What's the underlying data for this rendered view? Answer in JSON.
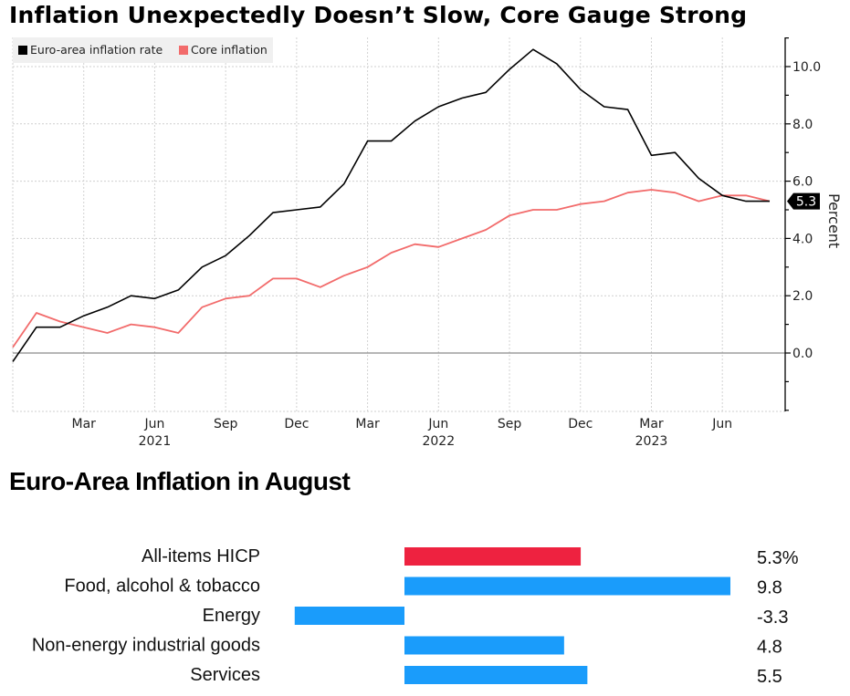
{
  "chart_data": [
    {
      "type": "line",
      "title": "Inflation Unexpectedly Doesn’t Slow, Core Gauge Strong",
      "xlabel": "",
      "ylabel": "Percent",
      "ylim": [
        -2,
        11
      ],
      "y_ticks": [
        0,
        2,
        4,
        6,
        8,
        10
      ],
      "y_tick_labels": [
        "0.0",
        "2.0",
        "4.0",
        "6.0",
        "8.0",
        "10.0"
      ],
      "grid": true,
      "legend_placement": "top-left",
      "x": [
        "2020-12",
        "2021-01",
        "2021-02",
        "2021-03",
        "2021-04",
        "2021-05",
        "2021-06",
        "2021-07",
        "2021-08",
        "2021-09",
        "2021-10",
        "2021-11",
        "2021-12",
        "2022-01",
        "2022-02",
        "2022-03",
        "2022-04",
        "2022-05",
        "2022-06",
        "2022-07",
        "2022-08",
        "2022-09",
        "2022-10",
        "2022-11",
        "2022-12",
        "2023-01",
        "2023-02",
        "2023-03",
        "2023-04",
        "2023-05",
        "2023-06",
        "2023-07",
        "2023-08"
      ],
      "x_ticks": [
        {
          "index": 3,
          "label": "Mar",
          "year": ""
        },
        {
          "index": 6,
          "label": "Jun",
          "year": "2021"
        },
        {
          "index": 9,
          "label": "Sep",
          "year": ""
        },
        {
          "index": 12,
          "label": "Dec",
          "year": ""
        },
        {
          "index": 15,
          "label": "Mar",
          "year": ""
        },
        {
          "index": 18,
          "label": "Jun",
          "year": "2022"
        },
        {
          "index": 21,
          "label": "Sep",
          "year": ""
        },
        {
          "index": 24,
          "label": "Dec",
          "year": ""
        },
        {
          "index": 27,
          "label": "Mar",
          "year": "2023"
        },
        {
          "index": 30,
          "label": "Jun",
          "year": ""
        }
      ],
      "series": [
        {
          "name": "Euro-area inflation rate",
          "color": "#000000",
          "values": [
            -0.3,
            0.9,
            0.9,
            1.3,
            1.6,
            2.0,
            1.9,
            2.2,
            3.0,
            3.4,
            4.1,
            4.9,
            5.0,
            5.1,
            5.9,
            7.4,
            7.4,
            8.1,
            8.6,
            8.9,
            9.1,
            9.9,
            10.6,
            10.1,
            9.2,
            8.6,
            8.5,
            6.9,
            7.0,
            6.1,
            5.5,
            5.3,
            5.3
          ]
        },
        {
          "name": "Core inflation",
          "color": "#f26b6b",
          "values": [
            0.2,
            1.4,
            1.1,
            0.9,
            0.7,
            1.0,
            0.9,
            0.7,
            1.6,
            1.9,
            2.0,
            2.6,
            2.6,
            2.3,
            2.7,
            3.0,
            3.5,
            3.8,
            3.7,
            4.0,
            4.3,
            4.8,
            5.0,
            5.0,
            5.2,
            5.3,
            5.6,
            5.7,
            5.6,
            5.3,
            5.5,
            5.5,
            5.3
          ]
        }
      ],
      "last_value_label": "5.3"
    },
    {
      "type": "bar",
      "title": "Euro-Area Inflation in August",
      "orientation": "horizontal",
      "categories": [
        "All-items HICP",
        "Food, alcohol & tobacco",
        "Energy",
        "Non-energy industrial goods",
        "Services"
      ],
      "values": [
        5.3,
        9.8,
        -3.3,
        4.8,
        5.5
      ],
      "value_labels": [
        "5.3%",
        "9.8",
        "-3.3",
        "4.8",
        "5.5"
      ],
      "colors": [
        "#ee2240",
        "#1a9cfb",
        "#1a9cfb",
        "#1a9cfb",
        "#1a9cfb"
      ],
      "xlim": [
        -3.3,
        9.8
      ]
    }
  ]
}
